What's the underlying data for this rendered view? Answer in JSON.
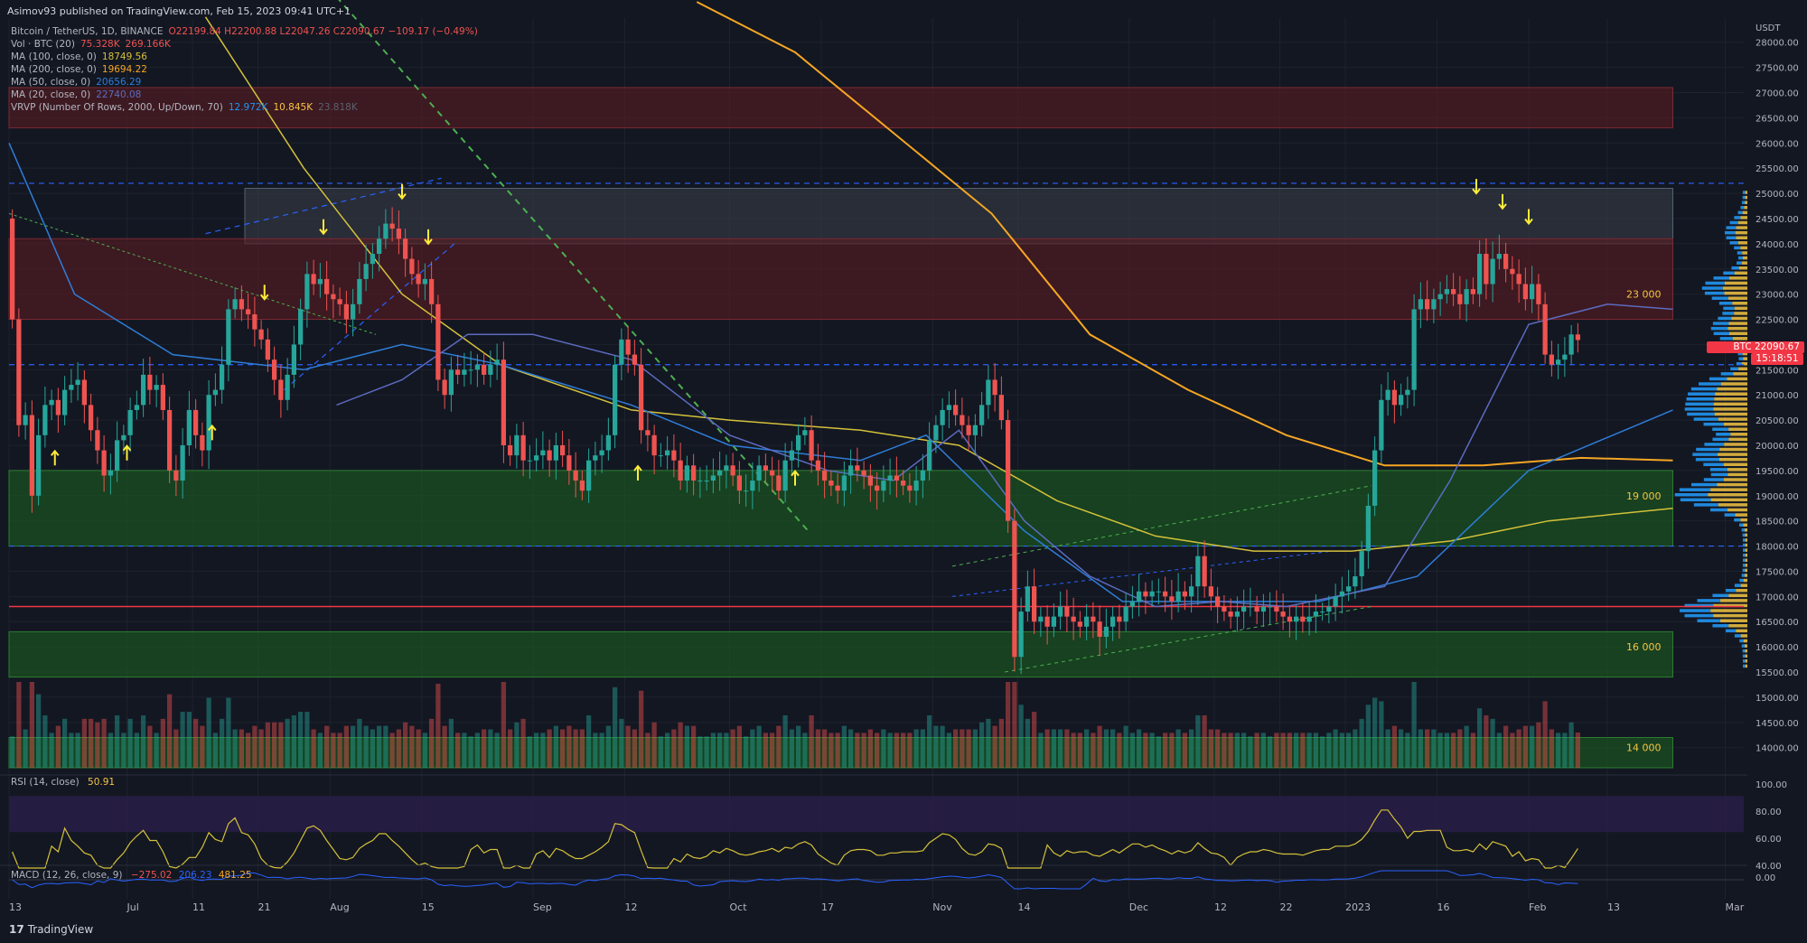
{
  "header": {
    "published": "Asimov93 published on TradingView.com, Feb 15, 2023 09:41 UTC+1"
  },
  "legend": {
    "symbol": "Bitcoin / TetherUS, 1D, BINANCE",
    "ohlc": "O22199.84 H22200.88 L22047.26 C22090.67 −109.17 (−0.49%)",
    "vol_label": "Vol · BTC (20)",
    "vol_a": "75.328K",
    "vol_b": "269.166K",
    "ma100_label": "MA (100, close, 0)",
    "ma100_val": "18749.56",
    "ma200_label": "MA (200, close, 0)",
    "ma200_val": "19694.22",
    "ma50_label": "MA (50, close, 0)",
    "ma50_val": "20656.29",
    "ma20_label": "MA (20, close, 0)",
    "ma20_val": "22740.08",
    "vrvp_label": "VRVP (Number Of Rows, 2000, Up/Down, 70)",
    "vrvp_a": "12.972K",
    "vrvp_b": "10.845K",
    "vrvp_c": "23.818K"
  },
  "price_tag": {
    "symbol": "BTCUSDT",
    "price": "22090.67",
    "countdown": "15:18:51"
  },
  "rsi": {
    "label": "RSI (14, close)",
    "value": "50.91",
    "ticks": [
      "100.00",
      "80.00",
      "60.00",
      "40.00"
    ]
  },
  "macd": {
    "label": "MACD (12, 26, close, 9)",
    "v1": "−275.02",
    "v2": "206.23",
    "v3": "481.25",
    "tick": "0.00"
  },
  "footer": {
    "brand": "TradingView"
  },
  "colors": {
    "background": "#131722",
    "up": "#26a69a",
    "down": "#ef5350",
    "green_zone": "#1b5e20",
    "red_zone": "#5a1a22",
    "grey_zone": "#3a3f4b",
    "ma_yellow": "#d4c13a",
    "ma_orange": "#f5a623",
    "ma_blue": "#2e7dd7",
    "vp_blue": "#2196f3",
    "vp_yellow": "#f5c542",
    "arrow": "#ffeb3b",
    "rsi_band": "#2a1e4a"
  },
  "chart_data": {
    "type": "candlestick",
    "title": "Bitcoin / TetherUS, 1D, BINANCE",
    "y_unit": "USDT",
    "ylim": [
      13600,
      28300
    ],
    "price_ticks": [
      "28000.00",
      "27500.00",
      "27000.00",
      "26500.00",
      "26000.00",
      "25500.00",
      "25000.00",
      "24500.00",
      "24000.00",
      "23500.00",
      "23000.00",
      "22500.00",
      "22000.00",
      "21500.00",
      "21000.00",
      "20500.00",
      "20000.00",
      "19500.00",
      "19000.00",
      "18500.00",
      "18000.00",
      "17500.00",
      "17000.00",
      "16500.00",
      "16000.00",
      "15500.00",
      "15000.00",
      "14500.00",
      "14000.00"
    ],
    "price_tick_values": [
      28000,
      27500,
      27000,
      26500,
      26000,
      25500,
      25000,
      24500,
      24000,
      23500,
      23000,
      22500,
      22000,
      21500,
      21000,
      20500,
      20000,
      19500,
      19000,
      18500,
      18000,
      17500,
      17000,
      16500,
      16000,
      15500,
      15000,
      14500,
      14000
    ],
    "time_labels": [
      "13",
      "Jul",
      "11",
      "21",
      "Aug",
      "15",
      "Sep",
      "12",
      "Oct",
      "17",
      "Nov",
      "14",
      "Dec",
      "12",
      "22",
      "2023",
      "16",
      "Feb",
      "13",
      "Mar"
    ],
    "time_label_days": [
      0,
      18,
      28,
      38,
      49,
      63,
      80,
      94,
      110,
      124,
      141,
      154,
      171,
      184,
      194,
      204,
      218,
      232,
      244,
      262
    ],
    "level_labels": [
      {
        "text": "23 000",
        "price": 23000
      },
      {
        "text": "19 000",
        "price": 19000
      },
      {
        "text": "16 000",
        "price": 16000
      },
      {
        "text": "14 000",
        "price": 14000
      }
    ],
    "zones": [
      {
        "kind": "red",
        "from_day": 0,
        "to_day": 254,
        "low": 26300,
        "high": 27100
      },
      {
        "kind": "grey",
        "from_day": 36,
        "to_day": 254,
        "low": 24000,
        "high": 25100
      },
      {
        "kind": "red",
        "from_day": 0,
        "to_day": 254,
        "low": 22500,
        "high": 24100
      },
      {
        "kind": "green",
        "from_day": 0,
        "to_day": 254,
        "low": 18000,
        "high": 19500
      },
      {
        "kind": "green",
        "from_day": 0,
        "to_day": 254,
        "low": 15400,
        "high": 16300
      },
      {
        "kind": "green",
        "from_day": 0,
        "to_day": 254,
        "low": 13600,
        "high": 14200
      }
    ],
    "horizontal_lines": [
      {
        "price": 25200,
        "style": "dashed",
        "color": "#2962ff"
      },
      {
        "price": 21600,
        "style": "dashed",
        "color": "#2962ff"
      },
      {
        "price": 18000,
        "style": "dashed",
        "color": "#2962ff"
      },
      {
        "price": 16800,
        "style": "solid",
        "color": "#f23645"
      }
    ],
    "close": [
      22500,
      20400,
      20600,
      19000,
      20200,
      20800,
      20900,
      20600,
      21100,
      21200,
      21300,
      20800,
      20300,
      19900,
      19400,
      19500,
      20100,
      20200,
      20700,
      20800,
      21400,
      21100,
      21200,
      20700,
      19500,
      19300,
      20000,
      20700,
      20200,
      19900,
      21000,
      21100,
      21600,
      22700,
      22900,
      22700,
      22600,
      22300,
      22100,
      21700,
      21300,
      20900,
      21400,
      22000,
      22700,
      23400,
      23200,
      23300,
      23000,
      22900,
      22800,
      22500,
      22800,
      23300,
      23600,
      23800,
      24100,
      24400,
      24300,
      24100,
      23700,
      23400,
      23200,
      23300,
      22800,
      21300,
      21000,
      21500,
      21400,
      21500,
      21500,
      21600,
      21400,
      21600,
      21700,
      20000,
      19800,
      20200,
      19700,
      19700,
      19800,
      19900,
      19700,
      20000,
      19800,
      19500,
      19300,
      19100,
      19700,
      19800,
      19900,
      20200,
      21600,
      22100,
      21800,
      21600,
      20300,
      20200,
      19800,
      19800,
      19900,
      19700,
      19300,
      19600,
      19300,
      19300,
      19300,
      19400,
      19500,
      19600,
      19400,
      19100,
      19100,
      19300,
      19600,
      19500,
      19400,
      19100,
      19700,
      19900,
      20200,
      20300,
      19700,
      19500,
      19300,
      19200,
      19100,
      19400,
      19600,
      19500,
      19400,
      19200,
      19100,
      19300,
      19400,
      19300,
      19200,
      19100,
      19300,
      19500,
      20100,
      20400,
      20700,
      20800,
      20600,
      20400,
      20200,
      20400,
      20800,
      21300,
      21000,
      20500,
      18500,
      15800,
      16700,
      17200,
      16500,
      16600,
      16400,
      16600,
      16800,
      16600,
      16500,
      16400,
      16600,
      16500,
      16200,
      16400,
      16600,
      16500,
      16800,
      16900,
      17100,
      17000,
      17100,
      17100,
      17000,
      16900,
      17100,
      17000,
      17200,
      17800,
      17200,
      17000,
      16800,
      16700,
      16600,
      16700,
      16800,
      16800,
      16700,
      16800,
      16800,
      16700,
      16600,
      16500,
      16600,
      16500,
      16600,
      16700,
      16700,
      16800,
      17000,
      17100,
      17200,
      17400,
      17900,
      18800,
      19900,
      20900,
      21100,
      20800,
      21000,
      21100,
      22700,
      22900,
      22700,
      22900,
      23000,
      23100,
      23000,
      22800,
      23100,
      23000,
      23800,
      23200,
      23700,
      23800,
      23500,
      23400,
      23200,
      22900,
      23200,
      22800,
      21800,
      21600,
      21700,
      21800,
      22200,
      22090
    ],
    "ma20_path": [
      [
        50,
        20800
      ],
      [
        60,
        21300
      ],
      [
        70,
        22200
      ],
      [
        80,
        22200
      ],
      [
        95,
        21700
      ],
      [
        110,
        20200
      ],
      [
        125,
        19500
      ],
      [
        135,
        19300
      ],
      [
        145,
        20300
      ],
      [
        155,
        18500
      ],
      [
        165,
        17400
      ],
      [
        175,
        16800
      ],
      [
        185,
        16900
      ],
      [
        195,
        16800
      ],
      [
        210,
        17200
      ],
      [
        220,
        19300
      ],
      [
        232,
        22400
      ],
      [
        244,
        22800
      ],
      [
        254,
        22700
      ]
    ],
    "ma50_path": [
      [
        0,
        26000
      ],
      [
        10,
        23000
      ],
      [
        25,
        21800
      ],
      [
        45,
        21500
      ],
      [
        60,
        22000
      ],
      [
        75,
        21600
      ],
      [
        95,
        20800
      ],
      [
        110,
        20000
      ],
      [
        130,
        19700
      ],
      [
        140,
        20200
      ],
      [
        155,
        18300
      ],
      [
        170,
        16900
      ],
      [
        185,
        16900
      ],
      [
        200,
        16900
      ],
      [
        215,
        17400
      ],
      [
        232,
        19500
      ],
      [
        254,
        20700
      ]
    ],
    "ma100_path": [
      [
        30,
        28500
      ],
      [
        45,
        25500
      ],
      [
        60,
        23000
      ],
      [
        75,
        21600
      ],
      [
        95,
        20700
      ],
      [
        110,
        20500
      ],
      [
        130,
        20300
      ],
      [
        145,
        20000
      ],
      [
        160,
        18900
      ],
      [
        175,
        18200
      ],
      [
        190,
        17900
      ],
      [
        205,
        17900
      ],
      [
        220,
        18100
      ],
      [
        235,
        18500
      ],
      [
        254,
        18750
      ]
    ],
    "ma200_path": [
      [
        105,
        28800
      ],
      [
        120,
        27800
      ],
      [
        135,
        26200
      ],
      [
        150,
        24600
      ],
      [
        165,
        22200
      ],
      [
        180,
        21100
      ],
      [
        195,
        20200
      ],
      [
        210,
        19600
      ],
      [
        225,
        19600
      ],
      [
        240,
        19750
      ],
      [
        254,
        19700
      ]
    ],
    "volume_profile_note": "visible range volume profile on right edge",
    "arrows_down_days": [
      39,
      48,
      60,
      64,
      224,
      228,
      232
    ],
    "arrows_up_days": [
      7,
      18,
      31,
      96,
      120
    ]
  }
}
